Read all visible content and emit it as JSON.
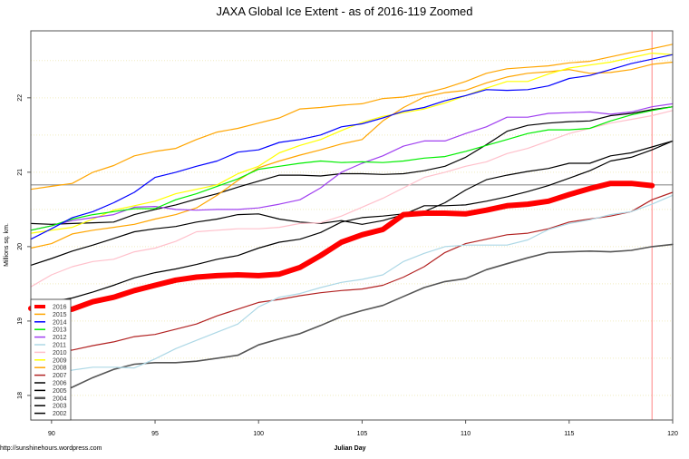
{
  "chart_data": {
    "type": "line",
    "title": "JAXA Global Ice Extent - as of 2016-119 Zoomed",
    "xlabel": "Julian Day",
    "ylabel": "Millions sq. km.",
    "footer": "http://sunshinehours.wordpress.com",
    "xlim": [
      89,
      120
    ],
    "ylim": [
      17.67,
      22.9
    ],
    "xticks": [
      90,
      95,
      100,
      105,
      110,
      115,
      120
    ],
    "yticks": [
      18,
      19,
      20,
      21,
      22
    ],
    "grid": true,
    "legend_position": "bottom-left",
    "reference_lines": {
      "horizontal_value": 20.83,
      "horizontal_color": "#aaaaaa",
      "vertical_day": 119,
      "vertical_color": "#ff6666"
    },
    "x_start": 89,
    "series": [
      {
        "name": "2016",
        "color": "#ff0000",
        "thick": true,
        "values": [
          19.17,
          19.11,
          19.16,
          19.26,
          19.32,
          19.41,
          19.48,
          19.55,
          19.59,
          19.61,
          19.62,
          19.61,
          19.63,
          19.72,
          19.88,
          20.06,
          20.16,
          20.23,
          20.43,
          20.45,
          20.45,
          20.44,
          20.49,
          20.55,
          20.57,
          20.61,
          20.7,
          20.78,
          20.85,
          20.85,
          20.82
        ]
      },
      {
        "name": "2015",
        "color": "#ffa500",
        "values": [
          20.77,
          20.81,
          20.85,
          21.0,
          21.09,
          21.22,
          21.28,
          21.32,
          21.44,
          21.54,
          21.59,
          21.66,
          21.73,
          21.85,
          21.87,
          21.9,
          21.92,
          21.99,
          22.01,
          22.06,
          22.13,
          22.22,
          22.33,
          22.39,
          22.41,
          22.43,
          22.47,
          22.49,
          22.55,
          22.61,
          22.66,
          22.72
        ]
      },
      {
        "name": "2014",
        "color": "#0000ff",
        "values": [
          20.1,
          20.24,
          20.39,
          20.47,
          20.59,
          20.73,
          20.93,
          21.0,
          21.08,
          21.15,
          21.27,
          21.3,
          21.4,
          21.44,
          21.5,
          21.61,
          21.65,
          21.73,
          21.82,
          21.87,
          21.96,
          22.03,
          22.11,
          22.1,
          22.11,
          22.16,
          22.26,
          22.3,
          22.38,
          22.46,
          22.52,
          22.58
        ]
      },
      {
        "name": "2013",
        "color": "#00ee00",
        "values": [
          20.22,
          20.28,
          20.37,
          20.43,
          20.47,
          20.51,
          20.51,
          20.63,
          20.71,
          20.81,
          20.91,
          21.04,
          21.08,
          21.12,
          21.15,
          21.13,
          21.14,
          21.13,
          21.15,
          21.19,
          21.21,
          21.28,
          21.36,
          21.44,
          21.52,
          21.57,
          21.57,
          21.59,
          21.69,
          21.77,
          21.83,
          21.88
        ]
      },
      {
        "name": "2012",
        "color": "#a040f0",
        "values": [
          20.22,
          20.28,
          20.35,
          20.39,
          20.43,
          20.53,
          20.54,
          20.5,
          20.49,
          20.5,
          20.5,
          20.52,
          20.57,
          20.63,
          20.79,
          21.0,
          21.12,
          21.22,
          21.35,
          21.42,
          21.42,
          21.52,
          21.61,
          21.74,
          21.74,
          21.79,
          21.8,
          21.81,
          21.78,
          21.81,
          21.88,
          21.92
        ]
      },
      {
        "name": "2011",
        "color": "#add8e6",
        "values": [
          18.13,
          18.26,
          18.34,
          18.38,
          18.38,
          18.37,
          18.49,
          18.63,
          18.74,
          18.85,
          18.96,
          19.19,
          19.32,
          19.37,
          19.45,
          19.52,
          19.56,
          19.62,
          19.8,
          19.91,
          20.0,
          20.02,
          20.02,
          20.02,
          20.09,
          20.23,
          20.31,
          20.36,
          20.43,
          20.47,
          20.57,
          20.69
        ]
      },
      {
        "name": "2010",
        "color": "#ffc0cb",
        "values": [
          19.46,
          19.62,
          19.73,
          19.8,
          19.83,
          19.93,
          19.98,
          20.07,
          20.2,
          20.22,
          20.24,
          20.24,
          20.26,
          20.31,
          20.32,
          20.41,
          20.53,
          20.65,
          20.79,
          20.93,
          21.0,
          21.08,
          21.14,
          21.25,
          21.32,
          21.42,
          21.52,
          21.59,
          21.66,
          21.71,
          21.76,
          21.83
        ]
      },
      {
        "name": "2009",
        "color": "#ffff00",
        "values": [
          20.18,
          20.22,
          20.26,
          20.37,
          20.49,
          20.55,
          20.61,
          20.71,
          20.77,
          20.83,
          20.98,
          21.08,
          21.26,
          21.36,
          21.44,
          21.56,
          21.67,
          21.75,
          21.8,
          21.85,
          21.93,
          22.03,
          22.13,
          22.22,
          22.22,
          22.32,
          22.4,
          22.44,
          22.48,
          22.54,
          22.6,
          22.58
        ]
      },
      {
        "name": "2008",
        "color": "#ffa500",
        "values": [
          19.98,
          20.04,
          20.17,
          20.22,
          20.26,
          20.3,
          20.37,
          20.43,
          20.52,
          20.69,
          20.89,
          21.06,
          21.15,
          21.23,
          21.3,
          21.38,
          21.44,
          21.69,
          21.87,
          22.01,
          22.07,
          22.1,
          22.2,
          22.28,
          22.33,
          22.35,
          22.38,
          22.33,
          22.34,
          22.38,
          22.45,
          22.48
        ]
      },
      {
        "name": "2007",
        "color": "#b22222",
        "values": [
          18.47,
          18.56,
          18.61,
          18.67,
          18.72,
          18.79,
          18.82,
          18.89,
          18.96,
          19.07,
          19.16,
          19.25,
          19.29,
          19.34,
          19.38,
          19.41,
          19.43,
          19.48,
          19.59,
          19.73,
          19.92,
          20.04,
          20.1,
          20.16,
          20.18,
          20.24,
          20.33,
          20.37,
          20.41,
          20.47,
          20.63,
          20.73
        ]
      },
      {
        "name": "2006",
        "color": "#000000",
        "values": [
          20.31,
          20.3,
          20.31,
          20.32,
          20.33,
          20.43,
          20.5,
          20.56,
          20.64,
          20.71,
          20.8,
          20.88,
          20.96,
          20.96,
          20.95,
          20.98,
          20.98,
          20.97,
          20.98,
          21.02,
          21.08,
          21.2,
          21.37,
          21.55,
          21.63,
          21.66,
          21.68,
          21.69,
          21.76,
          21.79,
          21.84,
          21.88
        ]
      },
      {
        "name": "2005",
        "color": "#000000",
        "values": [
          19.75,
          19.84,
          19.94,
          20.02,
          20.11,
          20.2,
          20.24,
          20.27,
          20.33,
          20.37,
          20.43,
          20.44,
          20.37,
          20.33,
          20.31,
          20.35,
          20.3,
          20.35,
          20.43,
          20.55,
          20.55,
          20.56,
          20.61,
          20.67,
          20.74,
          20.82,
          20.92,
          21.02,
          21.15,
          21.2,
          21.3,
          21.42
        ]
      },
      {
        "name": "2004",
        "color": "#555555",
        "values": [
          17.86,
          17.99,
          18.11,
          18.24,
          18.35,
          18.42,
          18.44,
          18.44,
          18.46,
          18.5,
          18.54,
          18.68,
          18.76,
          18.83,
          18.94,
          19.06,
          19.14,
          19.21,
          19.33,
          19.45,
          19.53,
          19.57,
          19.69,
          19.77,
          19.85,
          19.92,
          19.93,
          19.94,
          19.93,
          19.95,
          20.0,
          20.03
        ]
      },
      {
        "name": "2003",
        "color": "#000000",
        "values": [
          19.23,
          19.26,
          19.31,
          19.39,
          19.48,
          19.58,
          19.65,
          19.7,
          19.76,
          19.83,
          19.88,
          19.98,
          20.06,
          20.1,
          20.19,
          20.33,
          20.39,
          20.41,
          20.44,
          20.47,
          20.59,
          20.76,
          20.9,
          20.96,
          21.01,
          21.05,
          21.12,
          21.12,
          21.22,
          21.26,
          21.34,
          21.42
        ]
      },
      {
        "name": "2002",
        "color": "#000000",
        "values": []
      }
    ]
  }
}
